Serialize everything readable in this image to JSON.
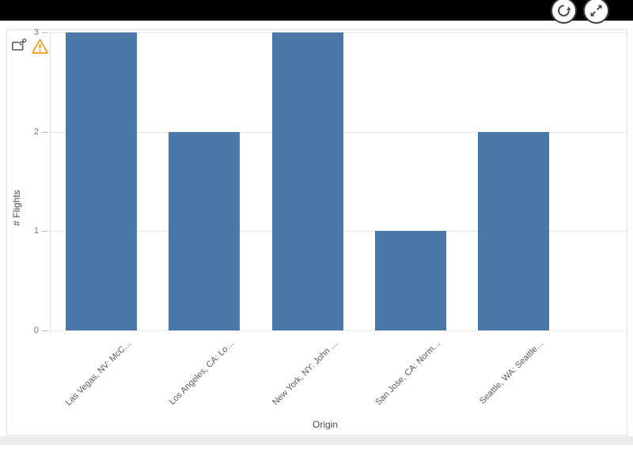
{
  "colors": {
    "bar": "#4a78a8",
    "warning": "#f0930f",
    "topbar": "#000000",
    "icon": "#3d3d3d",
    "card_icon": "#595959"
  },
  "toolbar": {
    "refresh_button": "refresh",
    "expand_button": "expand"
  },
  "card_icons": {
    "share": "share-chart",
    "warning": "warning"
  },
  "chart_data": {
    "type": "bar",
    "title": "",
    "categories": [
      "Las Vegas, NV: McC…",
      "Los Angeles, CA: Lo…",
      "New York, NY: John …",
      "San Jose, CA: Norm…",
      "Seattle, WA: Seattle…"
    ],
    "values": [
      3,
      2,
      3,
      1,
      2
    ],
    "xlabel": "Origin",
    "ylabel": "# Flights",
    "ylim": [
      0,
      3
    ],
    "yticks": [
      0,
      1,
      2,
      3
    ],
    "grid": "horizontal",
    "legend": "none"
  }
}
